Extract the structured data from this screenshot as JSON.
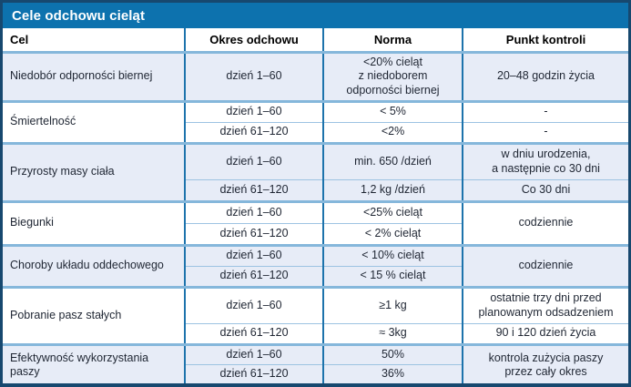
{
  "title": "Cele odchowu cieląt",
  "columns": {
    "cel": "Cel",
    "okres": "Okres odchowu",
    "norma": "Norma",
    "punkt": "Punkt kontroli"
  },
  "colors": {
    "title_bar": "#0d72ae",
    "frame_border": "#17486f",
    "shaded_row": "#e7ecf7",
    "grid_strong": "#1d73ac",
    "grid_light": "#85b7db"
  },
  "groups": [
    {
      "cel": "Niedobór odporności biernej",
      "rows": [
        {
          "okres": "dzień 1–60",
          "norma": "<20% cieląt\nz niedoborem\nodporności biernej",
          "punkt": "20–48 godzin życia"
        }
      ]
    },
    {
      "cel": "Śmiertelność",
      "rows": [
        {
          "okres": "dzień 1–60",
          "norma": "< 5%",
          "punkt": "-"
        },
        {
          "okres": "dzień 61–120",
          "norma": "<2%",
          "punkt": "-"
        }
      ]
    },
    {
      "cel": "Przyrosty masy ciała",
      "rows": [
        {
          "okres": "dzień 1–60",
          "norma": "min. 650 /dzień",
          "punkt": "w dniu urodzenia,\na następnie co 30 dni"
        },
        {
          "okres": "dzień 61–120",
          "norma": "1,2 kg /dzień",
          "punkt": "Co 30 dni"
        }
      ]
    },
    {
      "cel": "Biegunki",
      "punkt": "codziennie",
      "rows": [
        {
          "okres": "dzień 1–60",
          "norma": "<25% cieląt"
        },
        {
          "okres": "dzień 61–120",
          "norma": "< 2% cieląt"
        }
      ]
    },
    {
      "cel": "Choroby układu oddechowego",
      "punkt": "codziennie",
      "rows": [
        {
          "okres": "dzień 1–60",
          "norma": "< 10% cieląt"
        },
        {
          "okres": "dzień 61–120",
          "norma": "< 15 % cieląt"
        }
      ]
    },
    {
      "cel": "Pobranie pasz stałych",
      "rows": [
        {
          "okres": "dzień 1–60",
          "norma": "≥1 kg",
          "punkt": "ostatnie trzy dni przed\nplanowanym odsadzeniem"
        },
        {
          "okres": "dzień 61–120",
          "norma": "≈ 3kg",
          "punkt": "90 i 120 dzień życia"
        }
      ]
    },
    {
      "cel": "Efektywność wykorzystania paszy",
      "punkt": "kontrola zużycia paszy\nprzez cały okres",
      "rows": [
        {
          "okres": "dzień 1–60",
          "norma": "50%"
        },
        {
          "okres": "dzień 61–120",
          "norma": "36%"
        }
      ]
    }
  ]
}
